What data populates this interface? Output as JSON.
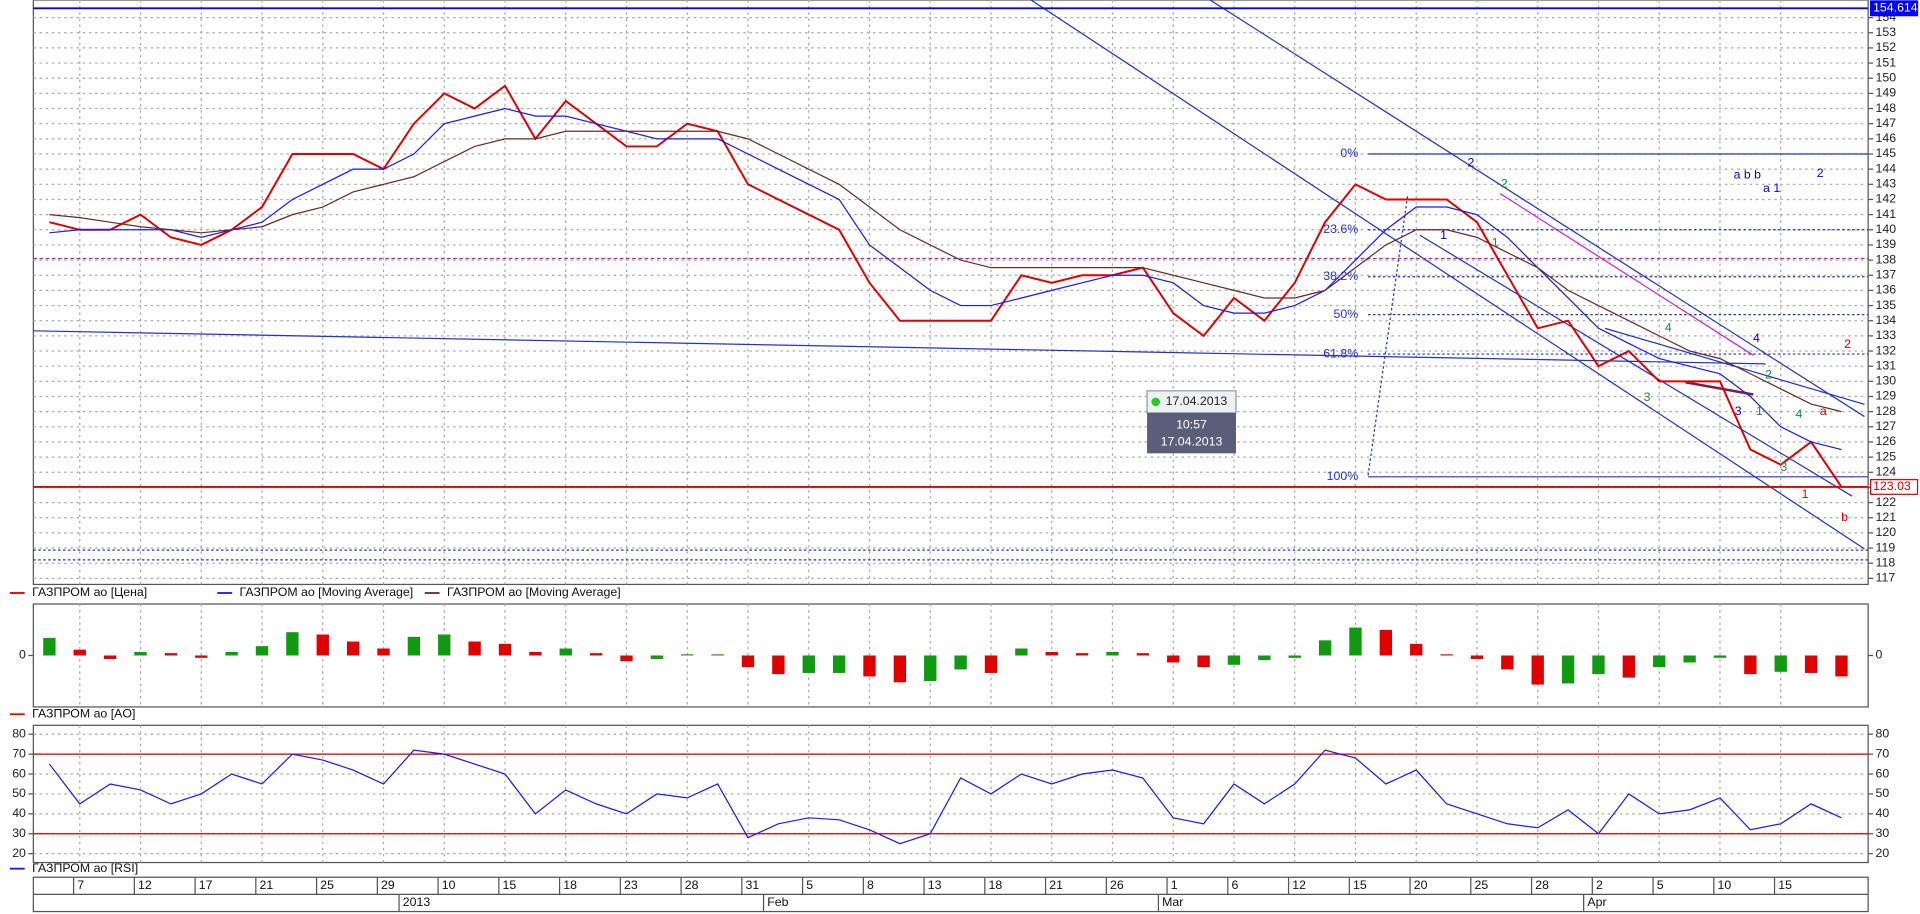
{
  "chart_data": [
    {
      "type": "line",
      "series": [
        {
          "name": "ГАЗПРОМ ао [Цена]",
          "color": "#e00000",
          "values": [
            140.5,
            140,
            140,
            141,
            139.5,
            139,
            140,
            141.5,
            145,
            145,
            145,
            144,
            147,
            149,
            148,
            149.5,
            146,
            148.5,
            147,
            145.5,
            145.5,
            147,
            146.5,
            143,
            142,
            141,
            140,
            136.5,
            134,
            134,
            134,
            134,
            137,
            136.5,
            137,
            137,
            137.5,
            134.5,
            133,
            135.5,
            134,
            136.5,
            140.5,
            143,
            142,
            142,
            142,
            140.5,
            137,
            133.5,
            134,
            131,
            132,
            130,
            130,
            130,
            125.5,
            124.5,
            126,
            123.03
          ]
        },
        {
          "name": "ГАЗПРОМ ао [Moving Average]",
          "color": "#1a1aff",
          "values": [
            139.8,
            140,
            140,
            140,
            140,
            139.5,
            140,
            140.5,
            142,
            143,
            144,
            144,
            145,
            147,
            147.5,
            148,
            147.5,
            147.5,
            147,
            146.5,
            146,
            146,
            146,
            145,
            144,
            143,
            142,
            139,
            137.5,
            136,
            135,
            135,
            135.5,
            136,
            136.5,
            137,
            137,
            136.5,
            135,
            134.5,
            134.5,
            135,
            136,
            138,
            140,
            141.5,
            141.5,
            141,
            139.5,
            137.5,
            135.5,
            133.5,
            132.5,
            131.5,
            131,
            130.5,
            129,
            127,
            126,
            125.5
          ]
        },
        {
          "name": "ГАЗПРОМ ао [Moving Average]",
          "color": "#6b2a2a",
          "values": [
            141,
            140.8,
            140.5,
            140.2,
            140,
            139.8,
            140,
            140.2,
            141,
            141.5,
            142.5,
            143,
            143.5,
            144.5,
            145.5,
            146,
            146,
            146.5,
            146.5,
            146.5,
            146.5,
            146.5,
            146.5,
            146,
            145,
            144,
            143,
            141.5,
            140,
            139,
            138,
            137.5,
            137.5,
            137.5,
            137.5,
            137.5,
            137.5,
            137,
            136.5,
            136,
            135.5,
            135.5,
            136,
            137.5,
            139,
            140,
            140,
            139.5,
            138.5,
            137.5,
            136,
            135,
            134,
            133,
            132,
            131.5,
            130.5,
            129.5,
            128.5,
            128
          ]
        }
      ],
      "ylim": [
        116.6,
        155
      ],
      "yticks": [
        117,
        118,
        119,
        120,
        121,
        122,
        123,
        124,
        125,
        126,
        127,
        128,
        129,
        130,
        131,
        132,
        133,
        134,
        135,
        136,
        137,
        138,
        139,
        140,
        141,
        142,
        143,
        144,
        145,
        146,
        147,
        148,
        149,
        150,
        151,
        152,
        153,
        154
      ],
      "grid": true,
      "hlines": [
        {
          "value": 154.614,
          "color": "#0000ff"
        },
        {
          "value": 123.03,
          "color": "#e00000"
        }
      ],
      "fib_levels": [
        {
          "label": "0%",
          "value": 145
        },
        {
          "label": "23.6%",
          "value": 140
        },
        {
          "label": "38.2%",
          "value": 136.9
        },
        {
          "label": "50%",
          "value": 134.4
        },
        {
          "label": "61.8%",
          "value": 131.8
        },
        {
          "label": "100%",
          "value": 123.7
        }
      ],
      "annotations": [
        {
          "text": "2",
          "j": 46.8,
          "v": 144.4,
          "color": "#0000ee"
        },
        {
          "text": "1",
          "j": 45.9,
          "v": 139.6,
          "color": "#0000ee"
        },
        {
          "text": "2",
          "j": 47.9,
          "v": 143,
          "color": "#109040"
        },
        {
          "text": "1",
          "j": 47.6,
          "v": 139.1,
          "color": "#109040"
        },
        {
          "text": "4",
          "j": 53.3,
          "v": 133.5,
          "color": "#109040"
        },
        {
          "text": "3",
          "j": 52.6,
          "v": 128.9,
          "color": "#109040"
        },
        {
          "text": "4",
          "j": 56.2,
          "v": 132.8,
          "color": "#0000ee"
        },
        {
          "text": "3",
          "j": 55.6,
          "v": 128,
          "color": "#0000ee"
        },
        {
          "text": "2",
          "j": 56.6,
          "v": 130.4,
          "color": "#109040"
        },
        {
          "text": "1",
          "j": 56.3,
          "v": 128,
          "color": "#109040"
        },
        {
          "text": "4",
          "j": 57.6,
          "v": 127.8,
          "color": "#109040"
        },
        {
          "text": "3",
          "j": 57.1,
          "v": 124.3,
          "color": "#109040"
        },
        {
          "text": "a",
          "j": 58.4,
          "v": 128,
          "color": "#e00000"
        },
        {
          "text": "1",
          "j": 57.8,
          "v": 122.5,
          "color": "#e00000"
        },
        {
          "text": "b",
          "j": 59.1,
          "v": 121,
          "color": "#e00000"
        },
        {
          "text": "2",
          "j": 59.2,
          "v": 132.4,
          "color": "#e00000"
        },
        {
          "text": "a b b",
          "j": 55.9,
          "v": 143.6,
          "color": "#0000ee"
        },
        {
          "text": "a 1",
          "j": 56.7,
          "v": 142.7,
          "color": "#0000ee"
        },
        {
          "text": "2",
          "j": 58.3,
          "v": 143.7,
          "color": "#0000ee"
        }
      ],
      "cursor_label": {
        "date": "17.04.2013",
        "time": "10:57",
        "date_full": "17.04.2013"
      }
    },
    {
      "type": "bar",
      "series": [
        {
          "name": "ГАЗПРОМ ао [AO]",
          "color": "#e00000",
          "values": [
            1.5,
            0.5,
            -0.3,
            0.3,
            0.2,
            -0.2,
            0.3,
            0.8,
            2,
            1.8,
            1.2,
            0.6,
            1.6,
            1.8,
            1.2,
            1,
            0.3,
            0.6,
            0.2,
            -0.5,
            -0.3,
            0.1,
            0.1,
            -1,
            -1.6,
            -1.5,
            -1.5,
            -1.8,
            -2.3,
            -2.2,
            -1.2,
            -1.5,
            0.6,
            0.3,
            0.2,
            0.3,
            0.2,
            -0.6,
            -1,
            -0.8,
            -0.4,
            -0.2,
            1.3,
            2.4,
            2.2,
            1,
            0.1,
            -0.3,
            -1.2,
            -2.5,
            -2.4,
            -1.6,
            -1.9,
            -1,
            -0.6,
            -0.2,
            -1.6,
            -1.4,
            -1.5,
            -1.8
          ]
        }
      ],
      "up_color": "#109a10",
      "down_color": "#e00000",
      "ylim": [
        -4,
        4
      ],
      "yticks": [
        0
      ]
    },
    {
      "type": "line",
      "series": [
        {
          "name": "ГАЗПРОМ ао [RSI]",
          "color": "#1a1aff",
          "values": [
            65,
            45,
            55,
            52,
            45,
            50,
            60,
            55,
            70,
            67,
            62,
            55,
            72,
            70,
            65,
            60,
            40,
            52,
            45,
            40,
            50,
            48,
            55,
            28,
            35,
            38,
            37,
            32,
            25,
            30,
            58,
            50,
            60,
            55,
            60,
            62,
            58,
            38,
            35,
            55,
            45,
            55,
            72,
            68,
            55,
            62,
            45,
            40,
            35,
            33,
            42,
            30,
            50,
            40,
            42,
            48,
            32,
            35,
            45,
            38
          ]
        }
      ],
      "ylim": [
        18,
        82
      ],
      "yticks": [
        20,
        30,
        40,
        50,
        60,
        70,
        80
      ],
      "levels": [
        70,
        30
      ],
      "level_color": "#d00000",
      "categories": [
        null,
        "7",
        null,
        "12",
        null,
        "17",
        null,
        "21",
        null,
        "25",
        null,
        "29",
        null,
        "10",
        null,
        "15",
        null,
        "18",
        null,
        "23",
        null,
        "28",
        null,
        "31",
        null,
        "5",
        null,
        "8",
        null,
        "13",
        null,
        "18",
        null,
        "21",
        null,
        "26",
        null,
        "1",
        null,
        "6",
        null,
        "12",
        null,
        "15",
        null,
        "20",
        null,
        "25",
        null,
        "28",
        null,
        "2",
        null,
        "5",
        null,
        "10",
        null,
        "15",
        null,
        null
      ],
      "periods": [
        {
          "label": "2013",
          "start": 12
        },
        {
          "label": "Feb",
          "start": 24
        },
        {
          "label": "Mar",
          "start": 37
        },
        {
          "label": "Apr",
          "start": 51
        }
      ]
    }
  ]
}
